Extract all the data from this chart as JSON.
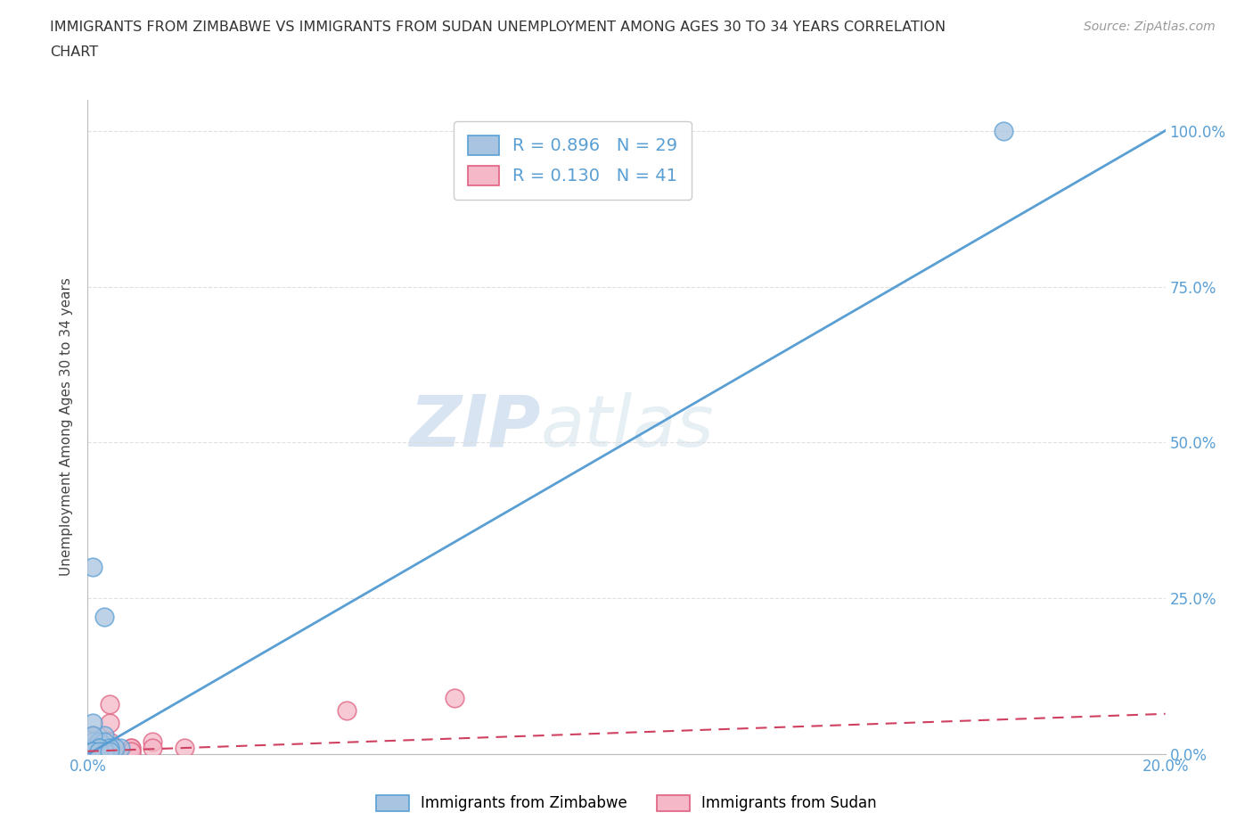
{
  "title_line1": "IMMIGRANTS FROM ZIMBABWE VS IMMIGRANTS FROM SUDAN UNEMPLOYMENT AMONG AGES 30 TO 34 YEARS CORRELATION",
  "title_line2": "CHART",
  "source_text": "Source: ZipAtlas.com",
  "ylabel_label": "Unemployment Among Ages 30 to 34 years",
  "xlim": [
    0.0,
    0.2
  ],
  "ylim": [
    0.0,
    1.05
  ],
  "watermark_zip": "ZIP",
  "watermark_atlas": "atlas",
  "legend_zim_label": "Immigrants from Zimbabwe",
  "legend_sud_label": "Immigrants from Sudan",
  "legend_R_zim": "R = 0.896",
  "legend_N_zim": "N = 29",
  "legend_R_sud": "R = 0.130",
  "legend_N_sud": "N = 41",
  "zim_color": "#a8c4e0",
  "sud_color": "#f4b8c8",
  "zim_edge_color": "#5a9fd4",
  "sud_edge_color": "#e06080",
  "zim_line_color": "#5a9fd4",
  "sud_line_color": "#d04060",
  "background_color": "#ffffff",
  "grid_color": "#dddddd",
  "tick_color": "#5a9fd4",
  "zim_line_x0": 0.0,
  "zim_line_y0": 0.0,
  "zim_line_x1": 0.2,
  "zim_line_y1": 1.0,
  "sud_line_x0": 0.0,
  "sud_line_y0": 0.005,
  "sud_line_x1": 0.2,
  "sud_line_y1": 0.065,
  "zim_scatter_x": [
    0.001,
    0.003,
    0.006,
    0.001,
    0.004,
    0.002,
    0.001,
    0.003,
    0.001,
    0.005,
    0.002,
    0.003,
    0.001,
    0.004,
    0.002,
    0.001,
    0.003,
    0.001,
    0.002,
    0.003,
    0.002,
    0.001,
    0.003,
    0.001,
    0.002,
    0.003,
    0.004,
    0.17,
    0.001
  ],
  "zim_scatter_y": [
    0.02,
    0.03,
    0.01,
    0.05,
    0.01,
    0.02,
    0.01,
    0.01,
    0.005,
    0.01,
    0.02,
    0.02,
    0.03,
    0.01,
    0.01,
    0.005,
    0.005,
    0.005,
    0.005,
    0.005,
    0.01,
    0.005,
    0.005,
    0.005,
    0.005,
    0.22,
    0.005,
    1.0,
    0.3
  ],
  "sud_scatter_x": [
    0.001,
    0.001,
    0.004,
    0.001,
    0.002,
    0.008,
    0.004,
    0.001,
    0.004,
    0.012,
    0.018,
    0.004,
    0.001,
    0.008,
    0.001,
    0.001,
    0.004,
    0.008,
    0.004,
    0.001,
    0.001,
    0.004,
    0.001,
    0.048,
    0.068,
    0.001,
    0.001,
    0.004,
    0.012,
    0.001,
    0.001,
    0.004,
    0.001,
    0.004,
    0.008,
    0.001,
    0.004,
    0.001,
    0.004,
    0.001,
    0.004
  ],
  "sud_scatter_y": [
    0.005,
    0.01,
    0.005,
    0.005,
    0.02,
    0.01,
    0.005,
    0.005,
    0.01,
    0.02,
    0.01,
    0.005,
    0.01,
    0.005,
    0.005,
    0.005,
    0.005,
    0.01,
    0.005,
    0.005,
    0.005,
    0.005,
    0.005,
    0.07,
    0.09,
    0.005,
    0.005,
    0.005,
    0.01,
    0.005,
    0.005,
    0.02,
    0.005,
    0.01,
    0.005,
    0.005,
    0.05,
    0.03,
    0.005,
    0.005,
    0.08
  ]
}
